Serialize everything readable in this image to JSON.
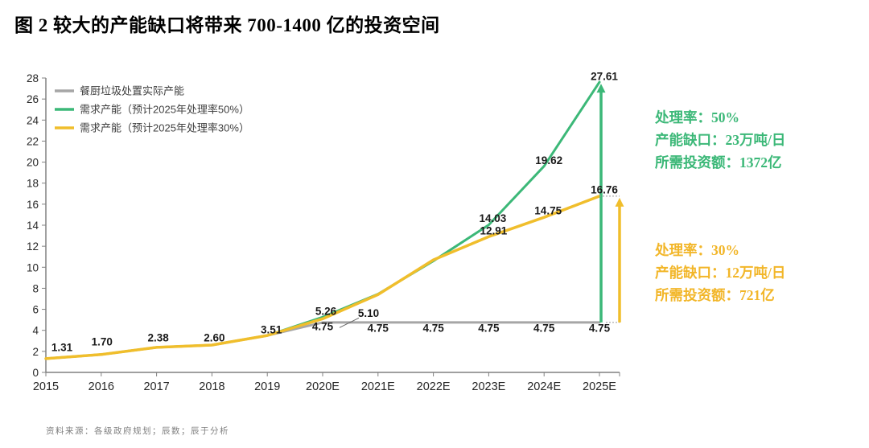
{
  "title": "图 2 较大的产能缺口将带来 700-1400 亿的投资空间",
  "source_note": "资料来源：各级政府规划；辰数；辰于分析",
  "colors": {
    "green": "#3CB878",
    "yellow": "#F0BE2C",
    "gray": "#A6A6A6",
    "axis": "#808080",
    "tick_text": "#262626",
    "label_text": "#1A1A1A",
    "legend_text": "#3F3F3F",
    "annotation_green": "#3CB878",
    "annotation_yellow": "#F2B629",
    "connector": "#999999"
  },
  "annotations": {
    "green": {
      "lines": [
        "处理率：50%",
        "产能缺口：23万吨/日",
        "所需投资额：1372亿"
      ]
    },
    "yellow": {
      "lines": [
        "处理率：30%",
        "产能缺口：12万吨/日",
        "所需投资额：721亿"
      ]
    }
  },
  "chart_data": {
    "type": "line",
    "title": "图 2 较大的产能缺口将带来 700-1400 亿的投资空间",
    "categories": [
      "2015",
      "2016",
      "2017",
      "2018",
      "2019",
      "2020E",
      "2021E",
      "2022E",
      "2023E",
      "2024E",
      "2025E"
    ],
    "ylim": [
      0,
      28
    ],
    "ytick_step": 2,
    "grid": false,
    "legend_position": "top-left",
    "series": [
      {
        "name": "餐厨垃圾处置实际产能",
        "color_key": "gray",
        "values": [
          1.31,
          1.7,
          2.38,
          2.6,
          3.51,
          4.75,
          4.75,
          4.75,
          4.75,
          4.75,
          4.75
        ]
      },
      {
        "name": "需求产能（预计2025年处理率50%）",
        "color_key": "green",
        "values": [
          1.31,
          1.7,
          2.38,
          2.6,
          3.51,
          5.26,
          7.45,
          10.6,
          14.03,
          19.62,
          27.61
        ]
      },
      {
        "name": "需求产能（预计2025年处理率30%）",
        "color_key": "yellow",
        "values": [
          1.31,
          1.7,
          2.38,
          2.6,
          3.51,
          5.1,
          7.4,
          10.7,
          12.91,
          14.75,
          16.76
        ]
      }
    ],
    "point_labels": [
      {
        "series": 1,
        "index": 0,
        "text": "1.31"
      },
      {
        "series": 1,
        "index": 1,
        "text": "1.70"
      },
      {
        "series": 1,
        "index": 2,
        "text": "2.38"
      },
      {
        "series": 1,
        "index": 3,
        "text": "2.60"
      },
      {
        "series": 1,
        "index": 4,
        "text": "3.51"
      },
      {
        "series": 1,
        "index": 5,
        "text": "5.26"
      },
      {
        "series": 0,
        "index": 5,
        "text": "4.75"
      },
      {
        "series": 2,
        "index": 5,
        "text": "5.10",
        "leader": true
      },
      {
        "series": 0,
        "index": 6,
        "text": "4.75"
      },
      {
        "series": 0,
        "index": 7,
        "text": "4.75"
      },
      {
        "series": 0,
        "index": 8,
        "text": "4.75"
      },
      {
        "series": 0,
        "index": 9,
        "text": "4.75"
      },
      {
        "series": 0,
        "index": 10,
        "text": "4.75"
      },
      {
        "series": 1,
        "index": 8,
        "text": "14.03"
      },
      {
        "series": 2,
        "index": 8,
        "text": "12.91"
      },
      {
        "series": 1,
        "index": 9,
        "text": "19.62"
      },
      {
        "series": 2,
        "index": 9,
        "text": "14.75"
      },
      {
        "series": 1,
        "index": 10,
        "text": "27.61"
      },
      {
        "series": 2,
        "index": 10,
        "text": "16.76"
      }
    ],
    "gap_arrows": [
      {
        "color_key": "green",
        "x_index": 10,
        "from_value": 4.75,
        "to_value": 27.61
      },
      {
        "color_key": "yellow",
        "x_index": 10,
        "from_value": 4.75,
        "to_value": 16.76
      }
    ]
  }
}
